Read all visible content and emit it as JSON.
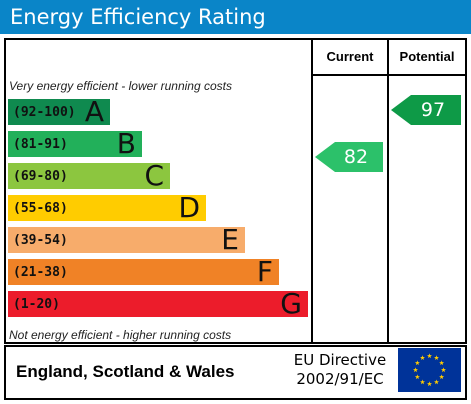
{
  "header": {
    "title": "Energy Efficiency Rating"
  },
  "columns": {
    "current": "Current",
    "potential": "Potential"
  },
  "captions": {
    "top": "Very energy efficient - lower running costs",
    "bottom": "Not energy efficient - higher running costs"
  },
  "bands": [
    {
      "range": "(92-100)",
      "letter": "A",
      "color": "#0f8a4f"
    },
    {
      "range": "(81-91)",
      "letter": "B",
      "color": "#22b05a"
    },
    {
      "range": "(69-80)",
      "letter": "C",
      "color": "#8cc63f"
    },
    {
      "range": "(55-68)",
      "letter": "D",
      "color": "#ffcc00"
    },
    {
      "range": "(39-54)",
      "letter": "E",
      "color": "#f7ac6b"
    },
    {
      "range": "(21-38)",
      "letter": "F",
      "color": "#f08226"
    },
    {
      "range": "(1-20)",
      "letter": "G",
      "color": "#ec1c2b"
    }
  ],
  "ratings": {
    "current": {
      "value": "82",
      "color": "#2cc16a"
    },
    "potential": {
      "value": "97",
      "color": "#0e9a47"
    }
  },
  "footer": {
    "region": "England, Scotland & Wales",
    "directive_line1": "EU Directive",
    "directive_line2": "2002/91/EC"
  }
}
